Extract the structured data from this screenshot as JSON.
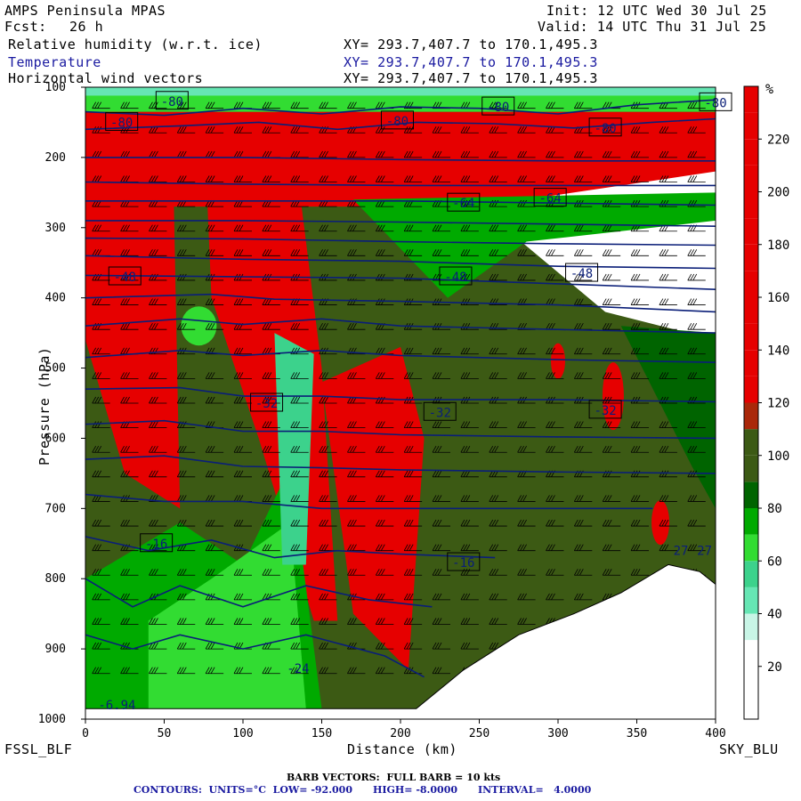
{
  "header": {
    "model": "AMPS Peninsula MPAS",
    "init": "Init: 12 UTC Wed 30 Jul 25",
    "fcst_label": "Fcst:",
    "fcst_value": "26 h",
    "valid": "Valid: 14 UTC Thu 31 Jul 25",
    "fields": [
      {
        "name": "Relative humidity (w.r.t. ice)",
        "xy": "XY= 293.7,407.7 to 170.1,495.3"
      },
      {
        "name": "Temperature",
        "xy": "XY= 293.7,407.7 to 170.1,495.3"
      },
      {
        "name": "Horizontal wind vectors",
        "xy": "XY= 293.7,407.7 to 170.1,495.3"
      }
    ]
  },
  "footer": {
    "left_endpoint": "FSSL_BLF",
    "right_endpoint": "SKY_BLU",
    "barb_note": "BARB VECTORS:  FULL BARB = 10 kts",
    "contours": "CONTOURS:  UNITS=°C  LOW= -92.000      HIGH= -8.0000      INTERVAL=   4.0000"
  },
  "colors": {
    "rh_scale": [
      "#ffffff",
      "#ffffff",
      "#c8f5e6",
      "#66e6b4",
      "#3cd28c",
      "#32dc32",
      "#00aa00",
      "#006400",
      "#3c5a14",
      "#aa280a",
      "#e60000",
      "#e60000",
      "#e60000",
      "#e60000",
      "#e60000"
    ],
    "temperature_contour": "#0a1e78"
  },
  "chart_data": {
    "type": "heatmap",
    "description_of_axes": "vertical cross-section",
    "xlabel": "Distance (km)",
    "ylabel": "Pressure (hPa)",
    "xlim": [
      0,
      400
    ],
    "ylim": [
      1000,
      100
    ],
    "x_ticks": [
      "0",
      "50",
      "100",
      "150",
      "200",
      "250",
      "300",
      "350",
      "400"
    ],
    "y_ticks": [
      "100",
      "200",
      "300",
      "400",
      "500",
      "600",
      "700",
      "800",
      "900",
      "1000"
    ],
    "colorbar": {
      "unit": "%",
      "ticks": [
        "20",
        "40",
        "60",
        "80",
        "100",
        "120",
        "140",
        "160",
        "180",
        "200",
        "220"
      ],
      "levels": [
        0,
        10,
        20,
        30,
        40,
        50,
        60,
        70,
        80,
        90,
        100,
        110,
        120,
        130,
        140,
        150,
        160,
        170,
        180,
        190,
        200,
        210,
        220,
        230,
        240
      ],
      "colors": [
        "#ffffff",
        "#ffffff",
        "#ffffff",
        "#c8f5e6",
        "#66e6b4",
        "#3cd28c",
        "#32dc32",
        "#00aa00",
        "#006400",
        "#3c5a14",
        "#3c5a14",
        "#aa280a",
        "#e60000",
        "#e60000",
        "#e60000",
        "#e60000",
        "#e60000",
        "#e60000",
        "#e60000",
        "#e60000",
        "#e60000",
        "#e60000",
        "#e60000",
        "#e60000"
      ]
    },
    "terrain": [
      {
        "x": 0,
        "p": 985
      },
      {
        "x": 40,
        "p": 985
      },
      {
        "x": 100,
        "p": 985
      },
      {
        "x": 150,
        "p": 985
      },
      {
        "x": 210,
        "p": 985
      },
      {
        "x": 240,
        "p": 930
      },
      {
        "x": 275,
        "p": 880
      },
      {
        "x": 310,
        "p": 850
      },
      {
        "x": 340,
        "p": 820
      },
      {
        "x": 370,
        "p": 780
      },
      {
        "x": 390,
        "p": 790
      },
      {
        "x": 400,
        "p": 808
      }
    ],
    "temperature_contours": [
      {
        "value": -80,
        "points": [
          [
            0,
            135
          ],
          [
            50,
            140
          ],
          [
            100,
            130
          ],
          [
            150,
            138
          ],
          [
            200,
            128
          ],
          [
            250,
            130
          ],
          [
            300,
            138
          ],
          [
            350,
            125
          ],
          [
            400,
            118
          ]
        ]
      },
      {
        "value": -76,
        "points": [
          [
            0,
            160
          ],
          [
            60,
            155
          ],
          [
            110,
            150
          ],
          [
            160,
            160
          ],
          [
            210,
            150
          ],
          [
            260,
            152
          ],
          [
            310,
            158
          ],
          [
            360,
            150
          ],
          [
            400,
            145
          ]
        ]
      },
      {
        "value": -72,
        "points": [
          [
            0,
            200
          ],
          [
            100,
            200
          ],
          [
            200,
            203
          ],
          [
            300,
            205
          ],
          [
            400,
            205
          ]
        ]
      },
      {
        "value": -68,
        "points": [
          [
            0,
            235
          ],
          [
            100,
            238
          ],
          [
            200,
            240
          ],
          [
            300,
            240
          ],
          [
            400,
            240
          ]
        ]
      },
      {
        "value": -64,
        "points": [
          [
            0,
            262
          ],
          [
            100,
            262
          ],
          [
            200,
            262
          ],
          [
            300,
            265
          ],
          [
            400,
            268
          ]
        ]
      },
      {
        "value": -60,
        "points": [
          [
            0,
            290
          ],
          [
            100,
            290
          ],
          [
            200,
            292
          ],
          [
            300,
            295
          ],
          [
            400,
            298
          ]
        ]
      },
      {
        "value": -56,
        "points": [
          [
            0,
            315
          ],
          [
            100,
            316
          ],
          [
            200,
            320
          ],
          [
            300,
            323
          ],
          [
            400,
            325
          ]
        ]
      },
      {
        "value": -52,
        "points": [
          [
            0,
            340
          ],
          [
            100,
            345
          ],
          [
            200,
            348
          ],
          [
            300,
            355
          ],
          [
            400,
            358
          ]
        ]
      },
      {
        "value": -48,
        "points": [
          [
            0,
            368
          ],
          [
            100,
            370
          ],
          [
            200,
            372
          ],
          [
            300,
            380
          ],
          [
            400,
            388
          ]
        ]
      },
      {
        "value": -44,
        "points": [
          [
            0,
            400
          ],
          [
            80,
            395
          ],
          [
            120,
            402
          ],
          [
            200,
            405
          ],
          [
            300,
            410
          ],
          [
            400,
            420
          ]
        ]
      },
      {
        "value": -40,
        "points": [
          [
            0,
            440
          ],
          [
            60,
            430
          ],
          [
            100,
            438
          ],
          [
            150,
            430
          ],
          [
            200,
            440
          ],
          [
            300,
            445
          ],
          [
            400,
            450
          ]
        ]
      },
      {
        "value": -36,
        "points": [
          [
            0,
            485
          ],
          [
            60,
            475
          ],
          [
            100,
            482
          ],
          [
            150,
            475
          ],
          [
            200,
            482
          ],
          [
            300,
            488
          ],
          [
            400,
            492
          ]
        ]
      },
      {
        "value": -32,
        "points": [
          [
            0,
            530
          ],
          [
            60,
            528
          ],
          [
            100,
            540
          ],
          [
            150,
            540
          ],
          [
            200,
            545
          ],
          [
            300,
            545
          ],
          [
            400,
            548
          ]
        ]
      },
      {
        "value": -28,
        "points": [
          [
            0,
            580
          ],
          [
            50,
            575
          ],
          [
            100,
            590
          ],
          [
            150,
            590
          ],
          [
            200,
            595
          ],
          [
            300,
            598
          ],
          [
            400,
            600
          ]
        ]
      },
      {
        "value": -24,
        "points": [
          [
            0,
            630
          ],
          [
            50,
            625
          ],
          [
            100,
            640
          ],
          [
            150,
            642
          ],
          [
            200,
            645
          ],
          [
            300,
            648
          ],
          [
            400,
            650
          ]
        ]
      },
      {
        "value": -20,
        "points": [
          [
            0,
            680
          ],
          [
            50,
            690
          ],
          [
            100,
            690
          ],
          [
            150,
            700
          ],
          [
            200,
            700
          ],
          [
            300,
            700
          ],
          [
            360,
            700
          ]
        ]
      },
      {
        "value": -16,
        "points": [
          [
            0,
            740
          ],
          [
            40,
            760
          ],
          [
            80,
            745
          ],
          [
            120,
            770
          ],
          [
            160,
            760
          ],
          [
            200,
            765
          ],
          [
            260,
            770
          ]
        ]
      },
      {
        "value": -12,
        "points": [
          [
            0,
            800
          ],
          [
            30,
            840
          ],
          [
            60,
            810
          ],
          [
            100,
            840
          ],
          [
            140,
            810
          ],
          [
            180,
            830
          ],
          [
            220,
            840
          ]
        ]
      },
      {
        "value": -8,
        "points": [
          [
            0,
            880
          ],
          [
            30,
            900
          ],
          [
            60,
            880
          ],
          [
            100,
            900
          ],
          [
            140,
            880
          ],
          [
            190,
            910
          ],
          [
            215,
            940
          ]
        ]
      }
    ],
    "contour_labels": [
      {
        "text": "-80",
        "x": 55,
        "p": 120
      },
      {
        "text": "-80",
        "x": 23,
        "p": 150
      },
      {
        "text": "-80",
        "x": 198,
        "p": 148
      },
      {
        "text": "-80",
        "x": 262,
        "p": 128
      },
      {
        "text": "-80",
        "x": 330,
        "p": 158
      },
      {
        "text": "-80",
        "x": 400,
        "p": 122
      },
      {
        "text": "-64",
        "x": 240,
        "p": 265
      },
      {
        "text": "-64",
        "x": 295,
        "p": 258
      },
      {
        "text": "-48",
        "x": 25,
        "p": 370
      },
      {
        "text": "-48",
        "x": 235,
        "p": 370
      },
      {
        "text": "-48",
        "x": 315,
        "p": 365
      },
      {
        "text": "-32",
        "x": 115,
        "p": 550
      },
      {
        "text": "-32",
        "x": 225,
        "p": 563
      },
      {
        "text": "-32",
        "x": 330,
        "p": 560
      },
      {
        "text": "-16",
        "x": 45,
        "p": 750
      },
      {
        "text": "-16",
        "x": 240,
        "p": 777
      },
      {
        "text": "-24",
        "x": 135,
        "p": 928
      },
      {
        "text": "-6.94",
        "x": 20,
        "p": 980
      }
    ],
    "boundary_labels": [
      {
        "text": "27",
        "x": 378,
        "p": 760
      },
      {
        "text": "27",
        "x": 393,
        "p": 760
      }
    ]
  }
}
